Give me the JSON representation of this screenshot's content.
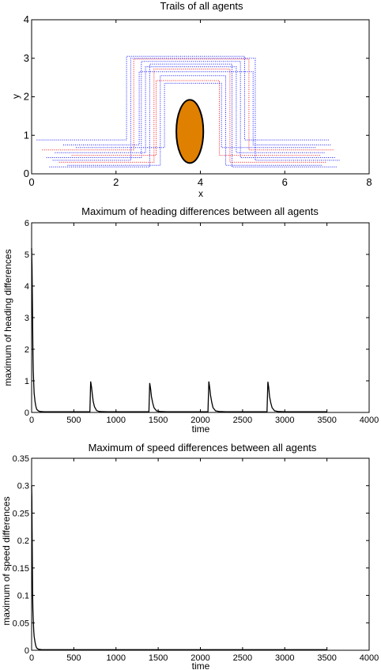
{
  "chart_data": [
    {
      "type": "line",
      "title": "Trails of all agents",
      "xlabel": "x",
      "ylabel": "y",
      "xlim": [
        0,
        8
      ],
      "ylim": [
        0,
        4
      ],
      "xticks": [
        "0",
        "2",
        "4",
        "6",
        "8"
      ],
      "yticks": [
        "0",
        "1",
        "2",
        "3",
        "4"
      ],
      "obstacle": {
        "shape": "ellipse",
        "center": [
          3.75,
          1.1
        ],
        "radii": [
          0.32,
          0.82
        ],
        "color": "#e08000"
      },
      "series": [
        {
          "color": "#1a1aff",
          "values": [
            [
              0.12,
              0.88
            ],
            [
              2.25,
              0.88
            ],
            [
              2.25,
              3.05
            ],
            [
              5.05,
              3.05
            ],
            [
              5.05,
              0.88
            ],
            [
              7.05,
              0.88
            ]
          ]
        },
        {
          "color": "#ff1a1a",
          "values": [
            [
              0.25,
              0.62
            ],
            [
              2.42,
              0.62
            ],
            [
              2.42,
              2.98
            ],
            [
              5.15,
              2.98
            ],
            [
              5.15,
              0.62
            ],
            [
              7.15,
              0.62
            ]
          ]
        },
        {
          "color": "#1a1aff",
          "values": [
            [
              0.35,
              0.42
            ],
            [
              2.6,
              0.42
            ],
            [
              2.6,
              2.92
            ],
            [
              4.95,
              2.92
            ],
            [
              4.95,
              0.42
            ],
            [
              7.2,
              0.42
            ]
          ]
        },
        {
          "color": "#1a1aff",
          "values": [
            [
              0.42,
              0.18
            ],
            [
              2.8,
              0.18
            ],
            [
              2.8,
              2.85
            ],
            [
              4.75,
              2.85
            ],
            [
              4.75,
              0.18
            ],
            [
              7.25,
              0.18
            ]
          ]
        },
        {
          "color": "#1a1aff",
          "values": [
            [
              0.55,
              0.55
            ],
            [
              2.7,
              0.55
            ],
            [
              2.7,
              2.78
            ],
            [
              4.85,
              2.78
            ],
            [
              4.85,
              0.55
            ],
            [
              6.95,
              0.55
            ]
          ]
        },
        {
          "color": "#ff1a1a",
          "values": [
            [
              0.65,
              0.3
            ],
            [
              2.9,
              0.3
            ],
            [
              2.9,
              2.72
            ],
            [
              4.7,
              2.72
            ],
            [
              4.7,
              0.3
            ],
            [
              7.0,
              0.3
            ]
          ]
        },
        {
          "color": "#1a1aff",
          "values": [
            [
              0.75,
              0.75
            ],
            [
              2.55,
              0.75
            ],
            [
              2.55,
              2.65
            ],
            [
              5.25,
              2.65
            ],
            [
              5.25,
              0.75
            ],
            [
              7.1,
              0.75
            ]
          ]
        },
        {
          "color": "#1a1aff",
          "values": [
            [
              0.85,
              0.22
            ],
            [
              3.05,
              0.22
            ],
            [
              3.05,
              2.55
            ],
            [
              4.6,
              2.55
            ],
            [
              4.6,
              0.22
            ],
            [
              6.9,
              0.22
            ]
          ]
        },
        {
          "color": "#ff1a1a",
          "values": [
            [
              0.95,
              0.48
            ],
            [
              2.95,
              0.48
            ],
            [
              2.95,
              2.42
            ],
            [
              4.45,
              2.42
            ],
            [
              4.45,
              0.48
            ],
            [
              6.85,
              0.48
            ]
          ]
        },
        {
          "color": "#1a1aff",
          "values": [
            [
              1.05,
              0.68
            ],
            [
              3.15,
              0.68
            ],
            [
              3.15,
              2.35
            ],
            [
              4.5,
              2.35
            ],
            [
              4.5,
              0.68
            ],
            [
              6.75,
              0.68
            ]
          ]
        },
        {
          "color": "#1a1aff",
          "values": [
            [
              0.5,
              0.35
            ],
            [
              2.35,
              0.35
            ],
            [
              2.35,
              3.0
            ],
            [
              5.3,
              3.0
            ],
            [
              5.3,
              0.35
            ],
            [
              7.3,
              0.35
            ]
          ]
        }
      ]
    },
    {
      "type": "line",
      "title": "Maximum of heading differences between all agents",
      "xlabel": "time",
      "ylabel": "maximum of heading differences",
      "xlim": [
        0,
        4000
      ],
      "ylim": [
        0,
        6
      ],
      "xticks": [
        "0",
        "500",
        "1000",
        "1500",
        "2000",
        "2500",
        "3000",
        "3500",
        "4000"
      ],
      "yticks": [
        "0",
        "1",
        "2",
        "3",
        "4",
        "5",
        "6"
      ],
      "series": [
        {
          "color": "#000000",
          "values": [
            [
              0,
              5.2
            ],
            [
              5,
              4.6
            ],
            [
              10,
              3.3
            ],
            [
              15,
              2.0
            ],
            [
              20,
              1.3
            ],
            [
              25,
              0.9
            ],
            [
              30,
              0.6
            ],
            [
              40,
              0.35
            ],
            [
              50,
              0.2
            ],
            [
              60,
              0.1
            ],
            [
              80,
              0.05
            ],
            [
              100,
              0.03
            ],
            [
              150,
              0.02
            ],
            [
              300,
              0.02
            ],
            [
              690,
              0.02
            ],
            [
              700,
              0.98
            ],
            [
              710,
              0.8
            ],
            [
              720,
              0.55
            ],
            [
              730,
              0.35
            ],
            [
              745,
              0.18
            ],
            [
              770,
              0.06
            ],
            [
              800,
              0.03
            ],
            [
              900,
              0.02
            ],
            [
              1390,
              0.02
            ],
            [
              1400,
              0.93
            ],
            [
              1410,
              0.75
            ],
            [
              1420,
              0.5
            ],
            [
              1435,
              0.3
            ],
            [
              1450,
              0.15
            ],
            [
              1480,
              0.05
            ],
            [
              1520,
              0.03
            ],
            [
              1600,
              0.02
            ],
            [
              2090,
              0.02
            ],
            [
              2100,
              0.98
            ],
            [
              2110,
              0.8
            ],
            [
              2120,
              0.55
            ],
            [
              2135,
              0.32
            ],
            [
              2150,
              0.15
            ],
            [
              2180,
              0.05
            ],
            [
              2220,
              0.03
            ],
            [
              2300,
              0.02
            ],
            [
              2790,
              0.02
            ],
            [
              2800,
              0.97
            ],
            [
              2810,
              0.78
            ],
            [
              2820,
              0.5
            ],
            [
              2835,
              0.3
            ],
            [
              2850,
              0.15
            ],
            [
              2880,
              0.05
            ],
            [
              2920,
              0.03
            ],
            [
              3000,
              0.02
            ],
            [
              3500,
              0.02
            ]
          ]
        }
      ]
    },
    {
      "type": "line",
      "title": "Maximum of speed differences between all agents",
      "xlabel": "time",
      "ylabel": "maximum of speed differences",
      "xlim": [
        0,
        4000
      ],
      "ylim": [
        0,
        0.35
      ],
      "xticks": [
        "0",
        "500",
        "1000",
        "1500",
        "2000",
        "2500",
        "3000",
        "3500",
        "4000"
      ],
      "yticks": [
        "0",
        "0.05",
        "0.1",
        "0.15",
        "0.2",
        "0.25",
        "0.3",
        "0.35"
      ],
      "series": [
        {
          "color": "#000000",
          "values": [
            [
              0,
              0.3
            ],
            [
              3,
              0.28
            ],
            [
              6,
              0.22
            ],
            [
              9,
              0.15
            ],
            [
              12,
              0.1
            ],
            [
              15,
              0.075
            ],
            [
              20,
              0.055
            ],
            [
              25,
              0.035
            ],
            [
              30,
              0.025
            ],
            [
              40,
              0.015
            ],
            [
              50,
              0.008
            ],
            [
              60,
              0.004
            ],
            [
              80,
              0.002
            ],
            [
              120,
              0.001
            ],
            [
              200,
              0.001
            ],
            [
              3500,
              0.001
            ]
          ]
        }
      ]
    }
  ]
}
